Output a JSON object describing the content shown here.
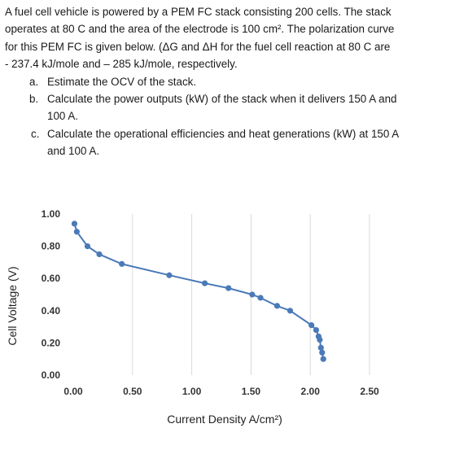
{
  "problem": {
    "intro_lines": [
      "A fuel cell vehicle is powered by a PEM FC stack consisting 200 cells. The stack",
      "operates at 80 C and the area of the electrode is 100 cm². The polarization curve",
      "for this PEM FC is given below. (ΔG and ΔH for the fuel cell reaction at 80 C are",
      "- 237.4 kJ/mole and – 285 kJ/mole, respectively."
    ],
    "items": [
      {
        "label": "a.",
        "lines": [
          "Estimate the OCV of the stack."
        ]
      },
      {
        "label": "b.",
        "lines": [
          "Calculate the power outputs (kW) of the stack when it delivers 150 A and",
          "100 A."
        ]
      },
      {
        "label": "c.",
        "lines": [
          "Calculate the operational efficiencies and heat generations (kW) at 150  A",
          "and 100 A."
        ]
      }
    ]
  },
  "chart_data": {
    "type": "scatter",
    "title": "",
    "xlabel": "Current Density A/cm²)",
    "ylabel": "Cell Voltage (V)",
    "xlim": [
      0,
      2.5
    ],
    "ylim": [
      0,
      1.0
    ],
    "x_ticks": [
      "0.00",
      "0.50",
      "1.00",
      "1.50",
      "2.00",
      "2.50"
    ],
    "y_ticks": [
      "0.00",
      "0.20",
      "0.40",
      "0.60",
      "0.80",
      "1.00"
    ],
    "grid": "vertical",
    "line_connected": true,
    "color": "#4a7ab8",
    "grid_color": "#d9d9d9",
    "x": [
      0.01,
      0.03,
      0.12,
      0.22,
      0.41,
      0.81,
      1.11,
      1.31,
      1.51,
      1.58,
      1.72,
      1.83,
      2.01,
      2.05,
      2.07,
      2.08,
      2.09,
      2.1,
      2.11
    ],
    "y": [
      0.94,
      0.89,
      0.8,
      0.75,
      0.69,
      0.62,
      0.57,
      0.54,
      0.5,
      0.48,
      0.43,
      0.4,
      0.31,
      0.28,
      0.24,
      0.22,
      0.17,
      0.14,
      0.1
    ]
  }
}
